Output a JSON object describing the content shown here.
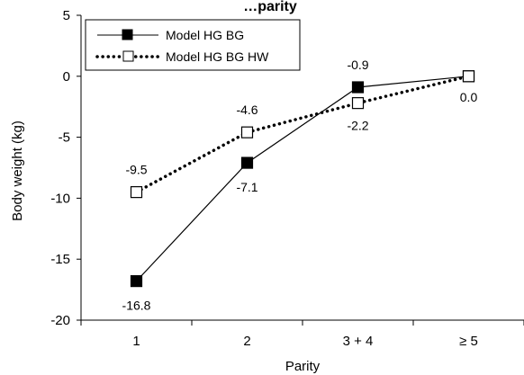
{
  "chart_data": {
    "type": "line",
    "title": "…parity",
    "xlabel": "Parity",
    "ylabel": "Body weight (kg)",
    "ylim": [
      -20,
      5
    ],
    "yticks": [
      "5",
      "0",
      "-5",
      "-10",
      "-15",
      "-20"
    ],
    "categories": [
      "1",
      "2",
      "3 + 4",
      "≥ 5"
    ],
    "legend_position": "top-left",
    "grid": false,
    "series": [
      {
        "name": "Model HG BG",
        "values": [
          -16.8,
          -7.1,
          -0.9,
          0.0
        ],
        "labels": [
          "-16.8",
          "-7.1",
          "-0.9",
          ""
        ],
        "line_style": "solid",
        "marker": "filled-square",
        "color": "#000000"
      },
      {
        "name": "Model HG BG HW",
        "values": [
          -9.5,
          -4.6,
          -2.2,
          0.0
        ],
        "labels": [
          "-9.5",
          "-4.6",
          "-2.2",
          "0.0"
        ],
        "line_style": "dotted",
        "marker": "open-square",
        "color": "#000000"
      }
    ]
  }
}
